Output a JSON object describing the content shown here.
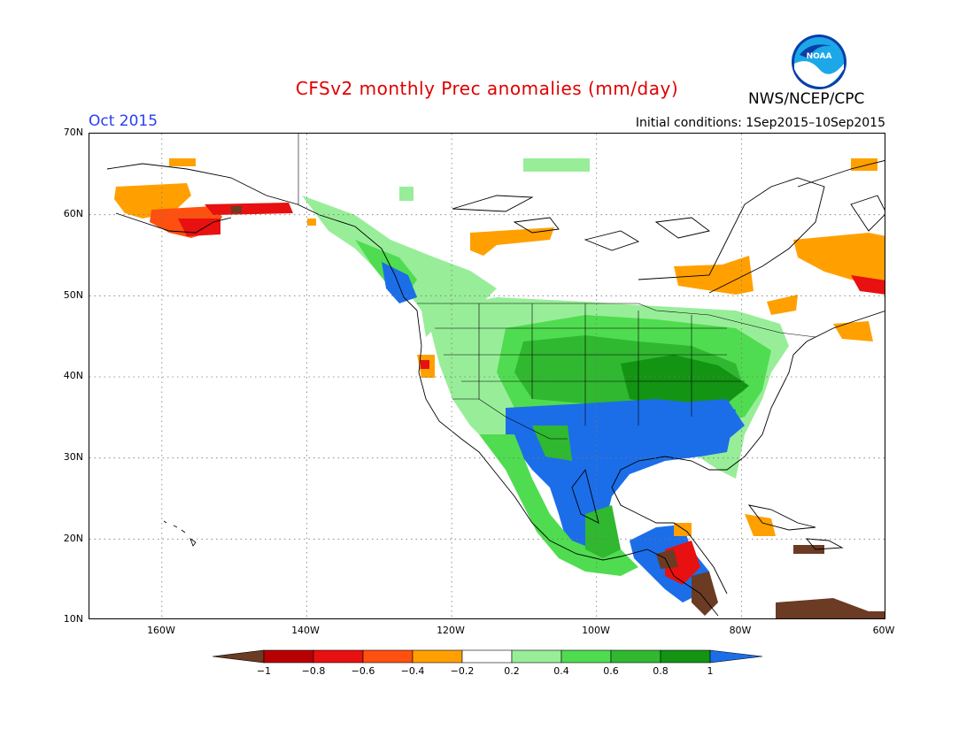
{
  "header": {
    "title": "CFSv2 monthly Prec anomalies (mm/day)",
    "month": "Oct 2015",
    "initial_conditions": "Initial conditions: 1Sep2015–10Sep2015",
    "agency": "NWS/NCEP/CPC",
    "logo_text": "NOAA"
  },
  "map": {
    "lat_labels": [
      "70N",
      "60N",
      "50N",
      "40N",
      "30N",
      "20N",
      "10N"
    ],
    "lon_labels": [
      "160W",
      "140W",
      "120W",
      "100W",
      "80W",
      "60W"
    ],
    "lat_range": [
      10,
      70
    ],
    "lon_range": [
      -170,
      -60
    ]
  },
  "colorbar": {
    "labels": [
      "−1",
      "−0.8",
      "−0.6",
      "−0.4",
      "−0.2",
      "0.2",
      "0.4",
      "0.6",
      "0.8",
      "1"
    ],
    "colors": {
      "lt_-1": "#6b3b24",
      "-1_-0.8": "#b80000",
      "-0.8_-0.6": "#e81010",
      "-0.6_-0.4": "#ff5010",
      "-0.4_-0.2": "#ffa000",
      "-0.2_0.2": "#ffffff",
      "0.2_0.4": "#98ee98",
      "0.4_0.6": "#50dc50",
      "0.6_0.8": "#30b830",
      "0.8_1": "#139413",
      "gt_1": "#1b6ee8"
    }
  }
}
